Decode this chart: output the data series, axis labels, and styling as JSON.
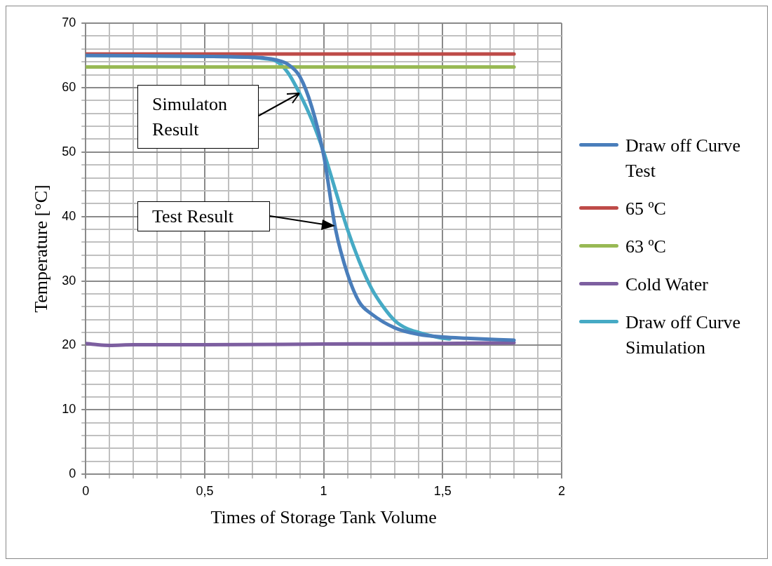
{
  "chart_data": {
    "type": "line",
    "xlabel": "Times of Storage Tank Volume",
    "ylabel": "Temperature [°C]",
    "xlim": [
      0,
      2
    ],
    "ylim": [
      0,
      70
    ],
    "xticks": [
      0,
      {
        "value": 0.1,
        "label": null
      },
      {
        "value": 0.2,
        "label": null
      },
      {
        "value": 0.3,
        "label": null
      },
      {
        "value": 0.4,
        "label": null
      },
      {
        "value": 0.5,
        "label": "0,5"
      },
      {
        "value": 0.6,
        "label": null
      },
      {
        "value": 0.7,
        "label": null
      },
      {
        "value": 0.8,
        "label": null
      },
      {
        "value": 0.9,
        "label": null
      },
      1,
      {
        "value": 1.1,
        "label": null
      },
      {
        "value": 1.2,
        "label": null
      },
      {
        "value": 1.3,
        "label": null
      },
      {
        "value": 1.4,
        "label": null
      },
      {
        "value": 1.5,
        "label": "1,5"
      },
      {
        "value": 1.6,
        "label": null
      },
      {
        "value": 1.7,
        "label": null
      },
      {
        "value": 1.8,
        "label": null
      },
      {
        "value": 1.9,
        "label": null
      },
      2
    ],
    "yticks": [
      0,
      {
        "value": 2,
        "label": null
      },
      {
        "value": 4,
        "label": null
      },
      {
        "value": 6,
        "label": null
      },
      {
        "value": 8,
        "label": null
      },
      10,
      {
        "value": 12,
        "label": null
      },
      {
        "value": 14,
        "label": null
      },
      {
        "value": 16,
        "label": null
      },
      {
        "value": 18,
        "label": null
      },
      20,
      {
        "value": 22,
        "label": null
      },
      {
        "value": 24,
        "label": null
      },
      {
        "value": 26,
        "label": null
      },
      {
        "value": 28,
        "label": null
      },
      30,
      {
        "value": 32,
        "label": null
      },
      {
        "value": 34,
        "label": null
      },
      {
        "value": 36,
        "label": null
      },
      {
        "value": 38,
        "label": null
      },
      40,
      {
        "value": 42,
        "label": null
      },
      {
        "value": 44,
        "label": null
      },
      {
        "value": 46,
        "label": null
      },
      {
        "value": 48,
        "label": null
      },
      50,
      {
        "value": 52,
        "label": null
      },
      {
        "value": 54,
        "label": null
      },
      {
        "value": 56,
        "label": null
      },
      {
        "value": 58,
        "label": null
      },
      60,
      {
        "value": 62,
        "label": null
      },
      {
        "value": 64,
        "label": null
      },
      {
        "value": 66,
        "label": null
      },
      {
        "value": 68,
        "label": null
      },
      70
    ],
    "grid": true,
    "legend": "right",
    "marker": "none",
    "line_style": "solid",
    "series": [
      {
        "name": "Draw off Curve Test",
        "color": "#4a7ebb",
        "x": [
          0,
          0.3,
          0.6,
          0.7,
          0.75,
          0.8,
          0.85,
          0.9,
          0.95,
          1,
          1.05,
          1.1,
          1.15,
          1.2,
          1.3,
          1.4,
          1.5,
          1.6,
          1.8
        ],
        "values": [
          65,
          64.9,
          64.8,
          64.7,
          64.6,
          64.3,
          63.6,
          61.7,
          57,
          49.5,
          38,
          31.1,
          26.7,
          24.9,
          22.7,
          21.7,
          21.3,
          21.1,
          20.8
        ]
      },
      {
        "name": "65 ºC",
        "color": "#be4b48",
        "x": [
          0,
          1.8
        ],
        "values": [
          65.2,
          65.2
        ]
      },
      {
        "name": "63 ºC",
        "color": "#98b954",
        "x": [
          0,
          1.8
        ],
        "values": [
          63.2,
          63.2
        ]
      },
      {
        "name": "Cold Water",
        "color": "#7d5fa0",
        "x": [
          0,
          0.05,
          0.1,
          0.2,
          0.5,
          1,
          1.5,
          1.8
        ],
        "values": [
          20.3,
          20.1,
          20,
          20.1,
          20.1,
          20.2,
          20.3,
          20.4
        ]
      },
      {
        "name": "Draw off Curve Simulation",
        "color": "#46aac5",
        "x": [
          0,
          0.3,
          0.6,
          0.7,
          0.75,
          0.8,
          0.85,
          0.9,
          0.95,
          1,
          1.05,
          1.1,
          1.15,
          1.2,
          1.25,
          1.3,
          1.35,
          1.4,
          1.5,
          1.53
        ],
        "values": [
          65,
          64.9,
          64.8,
          64.7,
          64.5,
          64.1,
          62.3,
          59,
          55,
          50,
          44,
          38,
          33,
          28.9,
          26,
          23.8,
          22.6,
          22,
          21.1,
          21
        ]
      }
    ],
    "annotations": [
      "Simulaton Result",
      "Test Result"
    ]
  }
}
